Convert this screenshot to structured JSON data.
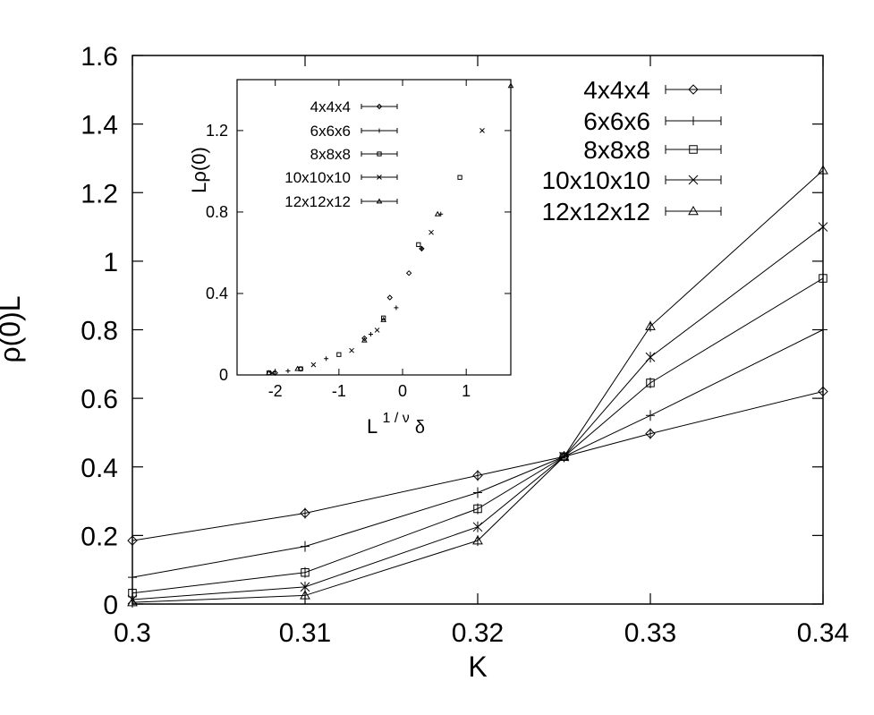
{
  "chart_data": [
    {
      "type": "line",
      "xlabel": "K",
      "ylabel": "ρ(0)L",
      "xlim": [
        0.3,
        0.34
      ],
      "ylim": [
        0,
        1.6
      ],
      "xticks": [
        "0.3",
        "0.31",
        "0.32",
        "0.33",
        "0.34"
      ],
      "yticks": [
        "0",
        "0.2",
        "0.4",
        "0.6",
        "0.8",
        "1",
        "1.2",
        "1.4",
        "1.6"
      ],
      "legend_position": "top-right",
      "x": [
        0.3,
        0.31,
        0.32,
        0.325,
        0.33,
        0.34
      ],
      "series": [
        {
          "name": "4x4x4",
          "marker": "diamond",
          "values": [
            0.185,
            0.265,
            0.375,
            0.43,
            0.497,
            0.62
          ]
        },
        {
          "name": "6x6x6",
          "marker": "plus",
          "values": [
            0.078,
            0.168,
            0.325,
            0.43,
            0.55,
            0.8
          ]
        },
        {
          "name": "8x8x8",
          "marker": "square",
          "values": [
            0.032,
            0.092,
            0.278,
            0.43,
            0.645,
            0.95
          ]
        },
        {
          "name": "10x10x10",
          "marker": "cross",
          "values": [
            0.013,
            0.05,
            0.225,
            0.43,
            0.72,
            1.1
          ]
        },
        {
          "name": "12x12x12",
          "marker": "triangle",
          "values": [
            0.005,
            0.025,
            0.185,
            0.43,
            0.81,
            1.265
          ]
        }
      ]
    },
    {
      "type": "scatter",
      "xlabel": "L",
      "xlabel_superscript": "1 / ν",
      "xlabel_subscript": "δ",
      "ylabel": "Lρ(0)",
      "xlim": [
        -2.6,
        1.7
      ],
      "ylim": [
        0,
        1.45
      ],
      "xticks": [
        {
          "value": -2,
          "label": "-2"
        },
        {
          "value": -1,
          "label": "-1"
        },
        {
          "value": 0,
          "label": "0"
        },
        {
          "value": 1,
          "label": "1"
        }
      ],
      "yticks": [
        {
          "value": 0,
          "label": "0"
        },
        {
          "value": 0.4,
          "label": "0.4"
        },
        {
          "value": 0.8,
          "label": "0.8"
        },
        {
          "value": 1.2,
          "label": "1.2"
        }
      ],
      "legend_position": "top-left",
      "series": [
        {
          "name": "4x4x4",
          "marker": "diamond",
          "points": [
            [
              -2.0,
              0.01
            ],
            [
              -1.6,
              0.03
            ],
            [
              -0.6,
              0.18
            ],
            [
              -0.2,
              0.38
            ],
            [
              0.1,
              0.5
            ],
            [
              0.3,
              0.62
            ]
          ]
        },
        {
          "name": "6x6x6",
          "marker": "plus",
          "points": [
            [
              -1.8,
              0.02
            ],
            [
              -1.2,
              0.08
            ],
            [
              -0.5,
              0.2
            ],
            [
              -0.1,
              0.33
            ],
            [
              0.3,
              0.62
            ],
            [
              0.6,
              0.79
            ]
          ]
        },
        {
          "name": "8x8x8",
          "marker": "square",
          "points": [
            [
              -2.1,
              0.01
            ],
            [
              -1.6,
              0.03
            ],
            [
              -1.0,
              0.1
            ],
            [
              -0.3,
              0.28
            ],
            [
              0.25,
              0.64
            ],
            [
              0.9,
              0.97
            ]
          ]
        },
        {
          "name": "10x10x10",
          "marker": "cross",
          "points": [
            [
              -2.05,
              0.01
            ],
            [
              -1.4,
              0.05
            ],
            [
              -0.8,
              0.12
            ],
            [
              -0.4,
              0.22
            ],
            [
              0.45,
              0.7
            ],
            [
              1.25,
              1.2
            ]
          ]
        },
        {
          "name": "12x12x12",
          "marker": "triangle",
          "points": [
            [
              -2.1,
              0.01
            ],
            [
              -1.65,
              0.03
            ],
            [
              -0.6,
              0.17
            ],
            [
              -0.3,
              0.27
            ],
            [
              0.55,
              0.79
            ],
            [
              1.7,
              1.42
            ]
          ]
        }
      ]
    }
  ]
}
